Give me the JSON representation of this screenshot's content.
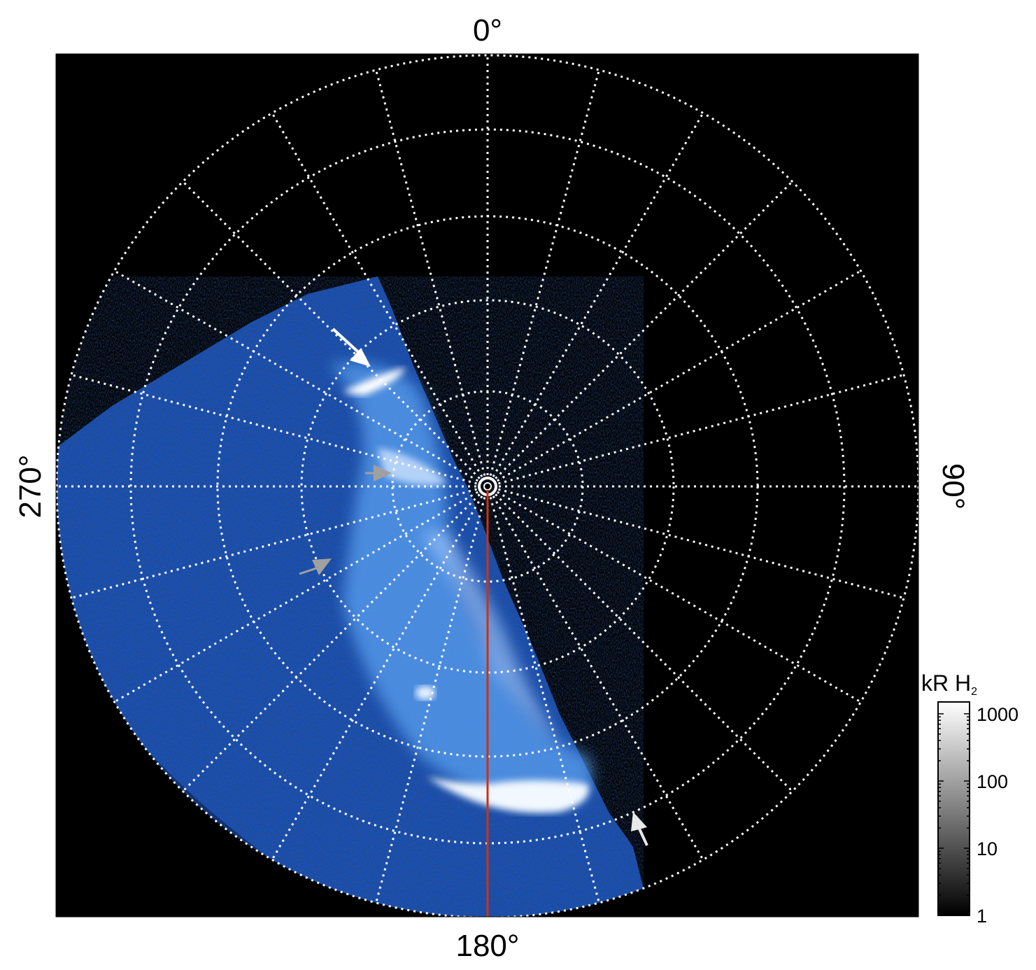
{
  "labels": {
    "top": "0°",
    "bottom": "180°",
    "left": "270°",
    "right": "90°"
  },
  "colorbar": {
    "title_main": "kR H",
    "title_sub": "2",
    "ticks": [
      "1000",
      "100",
      "10",
      "1"
    ],
    "tick_values": [
      1000,
      100,
      10,
      1
    ],
    "range": [
      1,
      1500
    ],
    "scale": "log"
  },
  "colors": {
    "background": "#000000",
    "grid": "#ffffff",
    "meridian_line": "#cc3311",
    "emission_deep": "#1f5fcc",
    "emission_bright": "#eef6ff",
    "arrow_white": "#ffffff",
    "arrow_gray": "#a0a0a0"
  },
  "grid": {
    "meridian_step_deg": 15,
    "rings": 5
  }
}
